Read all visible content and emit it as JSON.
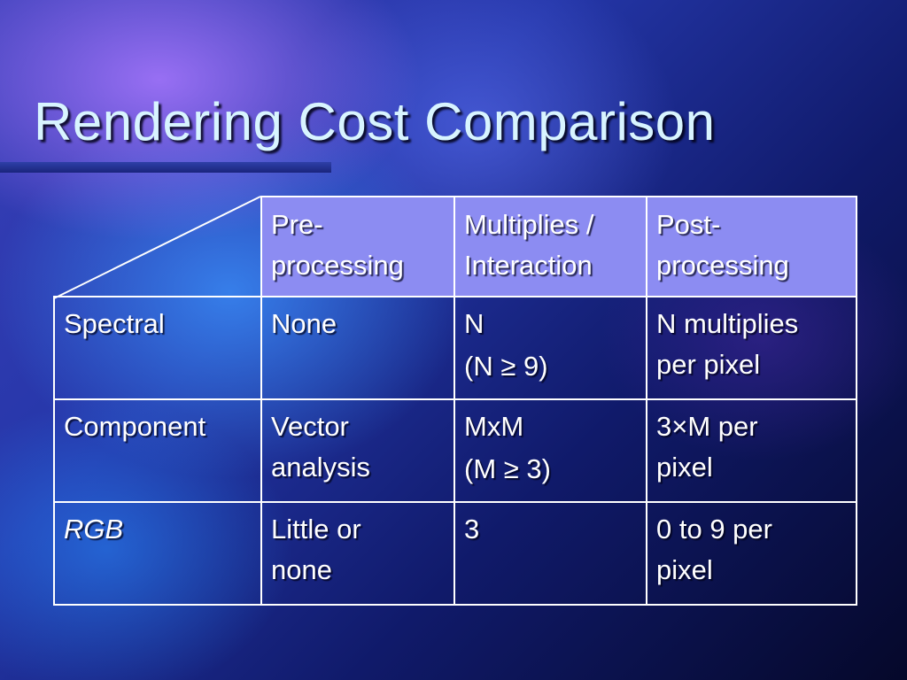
{
  "slide": {
    "title": "Rendering Cost Comparison"
  },
  "table": {
    "columns": [
      {
        "line1": "Pre-",
        "line2": "processing"
      },
      {
        "line1": "Multiplies /",
        "line2": "Interaction"
      },
      {
        "line1": "Post-",
        "line2": "processing"
      }
    ],
    "rows": [
      {
        "label": "Spectral",
        "pre": {
          "line1": "None",
          "line2": ""
        },
        "mult": {
          "line1": "N",
          "line2": "(N ≥ 9)"
        },
        "post": {
          "line1": "N multiplies",
          "line2": "per pixel"
        }
      },
      {
        "label": "Component",
        "pre": {
          "line1": "Vector",
          "line2": "analysis"
        },
        "mult": {
          "line1": "MxM",
          "line2": "(M ≥ 3)"
        },
        "post": {
          "line1": "3×M per",
          "line2": "pixel"
        }
      },
      {
        "label": "RGB",
        "pre": {
          "line1": "Little or",
          "line2": "none"
        },
        "mult": {
          "line1": "3",
          "line2": ""
        },
        "post": {
          "line1": "0 to 9 per",
          "line2": "pixel"
        }
      }
    ]
  }
}
